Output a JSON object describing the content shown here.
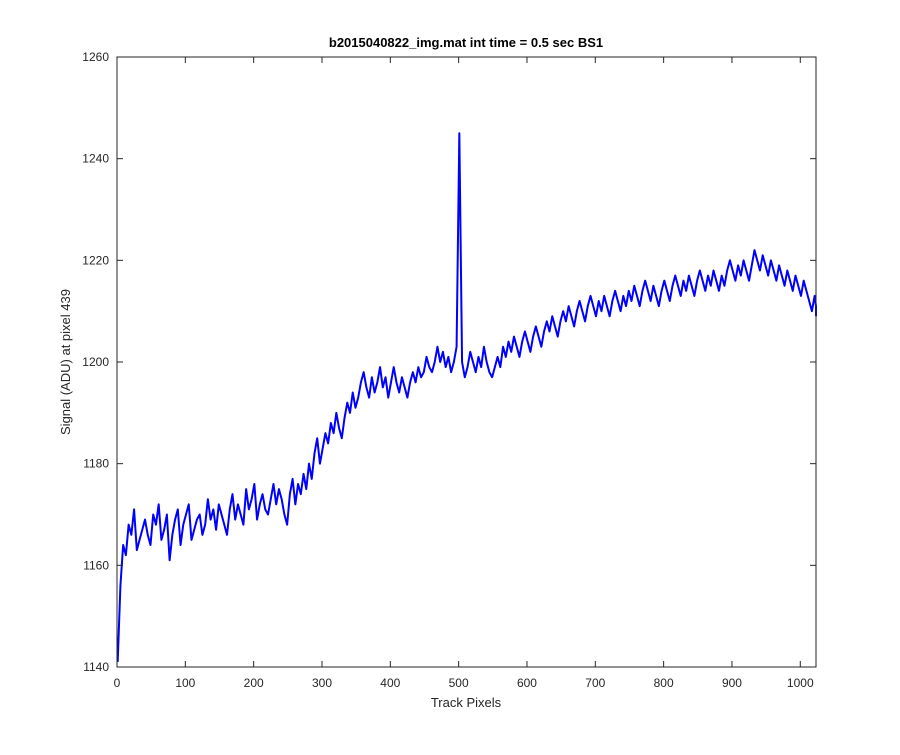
{
  "chart_data": {
    "type": "line",
    "title": "b2015040822_img.mat int time = 0.5 sec   BS1",
    "xlabel": "Track Pixels",
    "ylabel": "Signal (ADU) at pixel 439",
    "xlim": [
      0,
      1023
    ],
    "ylim": [
      1140,
      1260
    ],
    "xticks": [
      0,
      100,
      200,
      300,
      400,
      500,
      600,
      700,
      800,
      900,
      1000
    ],
    "yticks": [
      1140,
      1160,
      1180,
      1200,
      1220,
      1240,
      1260
    ],
    "xtick_labels": [
      "0",
      "100",
      "200",
      "300",
      "400",
      "500",
      "600",
      "700",
      "800",
      "900",
      "1000"
    ],
    "ytick_labels": [
      "1140",
      "1160",
      "1180",
      "1200",
      "1220",
      "1240",
      "1260"
    ],
    "grid": false,
    "line_color": "#0000ff",
    "series": [
      {
        "x_start": 1,
        "x_step": 4,
        "values": [
          1141,
          1156,
          1164,
          1162,
          1168,
          1166,
          1171,
          1163,
          1165,
          1167,
          1169,
          1166,
          1164,
          1170,
          1168,
          1172,
          1165,
          1167,
          1170,
          1161,
          1166,
          1169,
          1171,
          1164,
          1168,
          1170,
          1172,
          1165,
          1167,
          1169,
          1170,
          1166,
          1168,
          1173,
          1169,
          1171,
          1167,
          1172,
          1170,
          1168,
          1166,
          1171,
          1174,
          1169,
          1172,
          1170,
          1168,
          1175,
          1171,
          1173,
          1176,
          1169,
          1172,
          1174,
          1171,
          1170,
          1173,
          1176,
          1172,
          1175,
          1173,
          1170,
          1168,
          1174,
          1177,
          1172,
          1176,
          1174,
          1178,
          1175,
          1180,
          1177,
          1182,
          1185,
          1180,
          1183,
          1186,
          1184,
          1188,
          1186,
          1190,
          1187,
          1185,
          1189,
          1192,
          1190,
          1194,
          1191,
          1193,
          1196,
          1198,
          1195,
          1193,
          1197,
          1194,
          1196,
          1199,
          1195,
          1197,
          1193,
          1196,
          1199,
          1196,
          1194,
          1197,
          1195,
          1193,
          1196,
          1198,
          1196,
          1199,
          1197,
          1198,
          1201,
          1199,
          1198,
          1200,
          1203,
          1200,
          1202,
          1199,
          1201,
          1198,
          1200,
          1203,
          1245,
          1200,
          1197,
          1199,
          1202,
          1200,
          1198,
          1201,
          1199,
          1203,
          1200,
          1198,
          1197,
          1199,
          1201,
          1199,
          1203,
          1201,
          1204,
          1202,
          1205,
          1203,
          1201,
          1204,
          1206,
          1204,
          1202,
          1205,
          1207,
          1205,
          1203,
          1206,
          1208,
          1206,
          1209,
          1207,
          1205,
          1208,
          1210,
          1208,
          1211,
          1209,
          1207,
          1210,
          1212,
          1210,
          1208,
          1211,
          1213,
          1211,
          1209,
          1212,
          1210,
          1213,
          1211,
          1209,
          1212,
          1214,
          1212,
          1210,
          1213,
          1211,
          1214,
          1212,
          1215,
          1213,
          1211,
          1214,
          1216,
          1214,
          1212,
          1215,
          1213,
          1211,
          1214,
          1216,
          1214,
          1212,
          1215,
          1217,
          1215,
          1213,
          1216,
          1214,
          1217,
          1215,
          1213,
          1216,
          1218,
          1216,
          1214,
          1217,
          1215,
          1218,
          1216,
          1214,
          1217,
          1215,
          1218,
          1220,
          1218,
          1216,
          1219,
          1217,
          1220,
          1218,
          1216,
          1219,
          1222,
          1220,
          1218,
          1221,
          1219,
          1217,
          1220,
          1218,
          1216,
          1219,
          1217,
          1215,
          1218,
          1216,
          1214,
          1217,
          1215,
          1213,
          1216,
          1214,
          1212,
          1210,
          1213,
          1211,
          1209
        ]
      }
    ]
  }
}
